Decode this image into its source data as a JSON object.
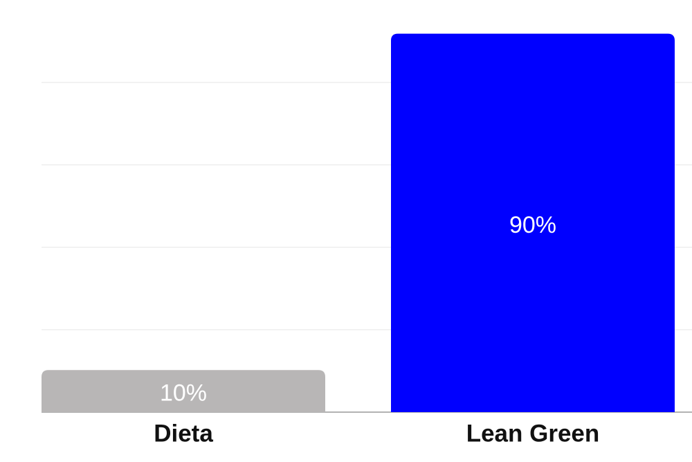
{
  "chart_data": {
    "type": "bar",
    "categories": [
      "Dieta",
      "Lean Green"
    ],
    "values": [
      10,
      90
    ],
    "value_labels": [
      "10%",
      "90%"
    ],
    "colors": [
      "#b8b6b6",
      "#0000ff"
    ],
    "ylim": [
      0,
      98
    ]
  }
}
